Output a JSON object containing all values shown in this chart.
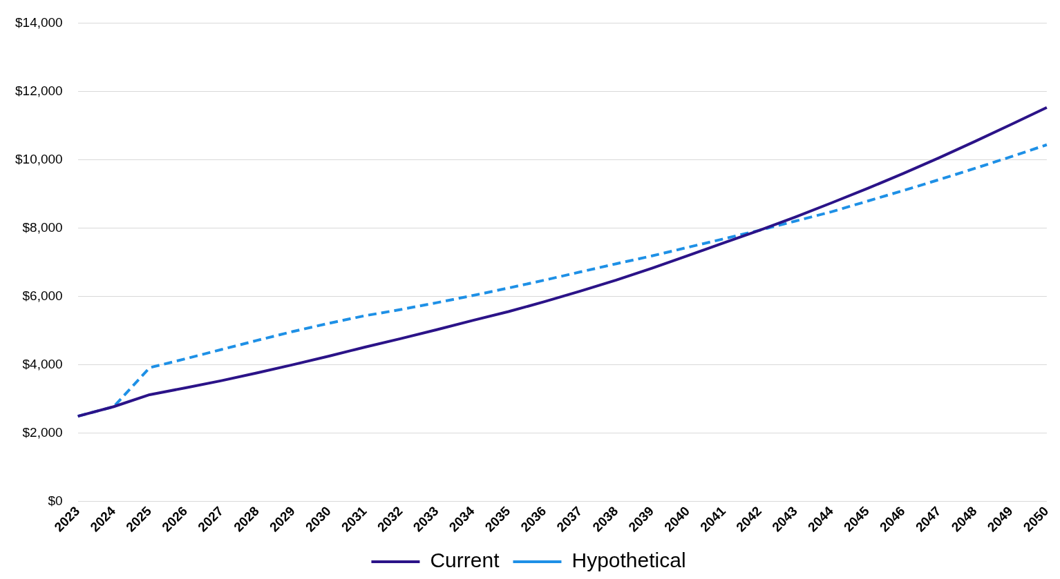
{
  "chart_data": {
    "type": "line",
    "categories": [
      "2023",
      "2024",
      "2025",
      "2026",
      "2027",
      "2028",
      "2029",
      "2030",
      "2031",
      "2032",
      "2033",
      "2034",
      "2035",
      "2036",
      "2037",
      "2038",
      "2039",
      "2040",
      "2041",
      "2042",
      "2043",
      "2044",
      "2045",
      "2046",
      "2047",
      "2048",
      "2049",
      "2050"
    ],
    "series": [
      {
        "name": "Current",
        "color": "#2b1388",
        "line_style": "solid",
        "values": [
          2500,
          2780,
          3130,
          3330,
          3540,
          3770,
          4010,
          4260,
          4520,
          4770,
          5030,
          5300,
          5560,
          5850,
          6160,
          6480,
          6830,
          7200,
          7570,
          7940,
          8330,
          8740,
          9160,
          9600,
          10060,
          10540,
          11030,
          11530
        ]
      },
      {
        "name": "Hypothetical",
        "color": "#1e90e6",
        "line_style": "dashed",
        "values": [
          2500,
          2780,
          3920,
          4180,
          4450,
          4720,
          4980,
          5220,
          5440,
          5620,
          5820,
          6030,
          6250,
          6480,
          6720,
          6960,
          7190,
          7440,
          7690,
          7940,
          8210,
          8480,
          8790,
          9100,
          9420,
          9750,
          10090,
          10440
        ]
      }
    ],
    "ylim": [
      0,
      14000
    ],
    "yticks": [
      {
        "value": 0,
        "label": "$0"
      },
      {
        "value": 2000,
        "label": "$2,000"
      },
      {
        "value": 4000,
        "label": "$4,000"
      },
      {
        "value": 6000,
        "label": "$6,000"
      },
      {
        "value": 8000,
        "label": "$8,000"
      },
      {
        "value": 10000,
        "label": "$10,000"
      },
      {
        "value": 12000,
        "label": "$12,000"
      },
      {
        "value": 14000,
        "label": "$14,000"
      }
    ],
    "grid": "y",
    "legend": "bottom",
    "marker": "none"
  }
}
